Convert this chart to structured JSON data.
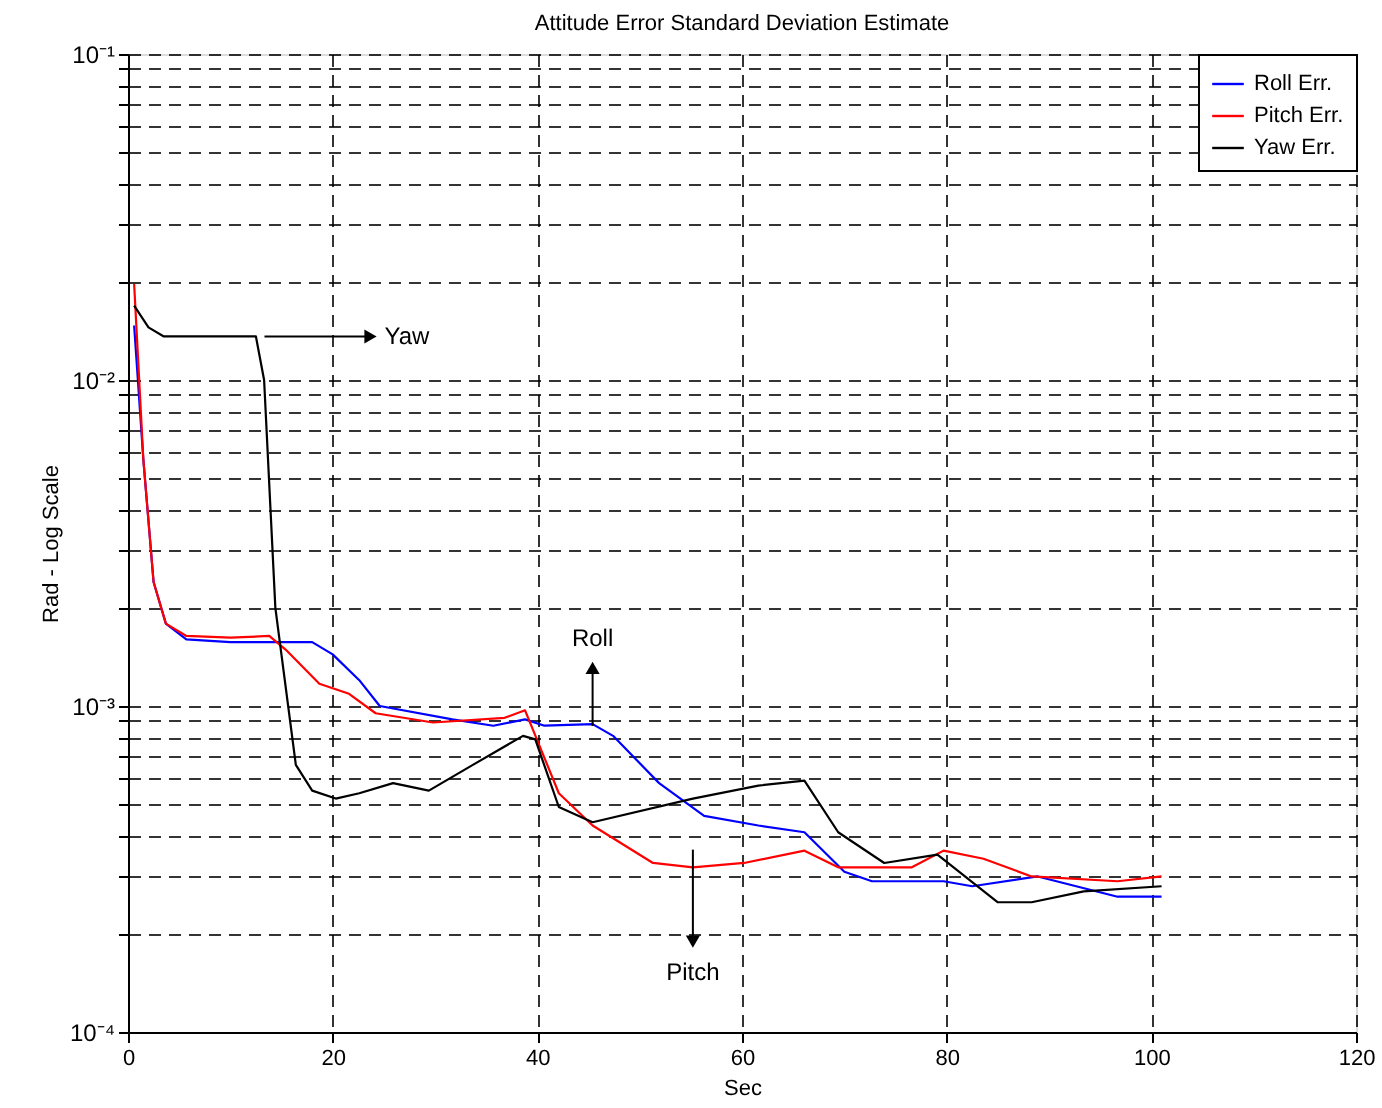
{
  "chart_data": {
    "type": "line",
    "title": "Attitude Error Standard Deviation Estimate",
    "xlabel": "Sec",
    "ylabel": "Rad - Log Scale",
    "log": "y",
    "grid": true,
    "legend": "top right",
    "line_style": "solid",
    "marker": "none",
    "xlim": [
      0,
      120
    ],
    "xticks": [
      0,
      20,
      40,
      60,
      80,
      100,
      120
    ],
    "ylim": [
      0.0001,
      0.1
    ],
    "yticks": [
      {
        "value": 0.0001,
        "label": "10⁻⁴"
      },
      {
        "value": 0.0002,
        "label": null
      },
      {
        "value": 0.0003,
        "label": null
      },
      {
        "value": 0.0004,
        "label": null
      },
      {
        "value": 0.0005,
        "label": null
      },
      {
        "value": 0.0006,
        "label": null
      },
      {
        "value": 0.0007,
        "label": null
      },
      {
        "value": 0.0008,
        "label": null
      },
      {
        "value": 0.0009,
        "label": null
      },
      {
        "value": 0.001,
        "label": "10⁻³"
      },
      {
        "value": 0.002,
        "label": null
      },
      {
        "value": 0.003,
        "label": null
      },
      {
        "value": 0.004,
        "label": null
      },
      {
        "value": 0.005,
        "label": null
      },
      {
        "value": 0.006,
        "label": null
      },
      {
        "value": 0.007,
        "label": null
      },
      {
        "value": 0.008,
        "label": null
      },
      {
        "value": 0.009,
        "label": null
      },
      {
        "value": 0.01,
        "label": "10⁻²"
      },
      {
        "value": 0.02,
        "label": null
      },
      {
        "value": 0.03,
        "label": null
      },
      {
        "value": 0.04,
        "label": null
      },
      {
        "value": 0.05,
        "label": null
      },
      {
        "value": 0.06,
        "label": null
      },
      {
        "value": 0.07,
        "label": null
      },
      {
        "value": 0.08,
        "label": null
      },
      {
        "value": 0.09,
        "label": null
      },
      {
        "value": 0.1,
        "label": "10⁻¹"
      }
    ],
    "series": [
      {
        "name": "Roll Err.",
        "color": "#0000ff",
        "x": [
          0.6,
          1.5,
          2.5,
          3.7,
          5.7,
          10,
          18,
          20,
          22.6,
          24.6,
          31.7,
          35.7,
          38.8,
          40.7,
          45.4,
          47.4,
          51.9,
          56.3,
          61.6,
          66.1,
          70,
          72.7,
          79.7,
          82.5,
          88.9,
          96.7,
          101
        ],
        "values": [
          0.0147,
          0.0057,
          0.0024,
          0.00179,
          0.0016,
          0.00157,
          0.00157,
          0.00144,
          0.0012,
          0.001,
          0.00091,
          0.00087,
          0.00091,
          0.00087,
          0.00088,
          0.00081,
          0.00058,
          0.00046,
          0.00043,
          0.00041,
          0.00031,
          0.00029,
          0.00029,
          0.00028,
          0.0003,
          0.00026,
          0.00026
        ]
      },
      {
        "name": "Pitch Err.",
        "color": "#ff0000",
        "x": [
          0.6,
          1.5,
          2.5,
          3.7,
          5.7,
          10,
          13.8,
          15.4,
          18.7,
          21.6,
          24.2,
          29.8,
          36.8,
          38.8,
          42.1,
          45.4,
          51.3,
          55.2,
          60.2,
          66.1,
          69.4,
          76.6,
          79.7,
          83.6,
          88.3,
          96.7,
          101
        ],
        "values": [
          0.0197,
          0.0057,
          0.0024,
          0.00179,
          0.00164,
          0.00162,
          0.00164,
          0.00149,
          0.00117,
          0.00109,
          0.00095,
          0.00089,
          0.00092,
          0.00097,
          0.00054,
          0.00043,
          0.00033,
          0.00032,
          0.00033,
          0.00036,
          0.00032,
          0.00032,
          0.00036,
          0.00034,
          0.0003,
          0.00029,
          0.0003
        ]
      },
      {
        "name": "Yaw Err.",
        "color": "#000000",
        "x": [
          0.6,
          2,
          3.5,
          8,
          12.5,
          13.3,
          14.4,
          16.4,
          18,
          20.3,
          22.6,
          25.9,
          29.4,
          33.7,
          38.6,
          39.8,
          42.1,
          45.4,
          55.2,
          61.6,
          66.1,
          69.4,
          73.9,
          79.1,
          85,
          88.3,
          93.4,
          101
        ],
        "values": [
          0.0169,
          0.0145,
          0.0136,
          0.0136,
          0.0136,
          0.01,
          0.002,
          0.00066,
          0.00055,
          0.00052,
          0.00054,
          0.00058,
          0.00055,
          0.00066,
          0.00081,
          0.00079,
          0.00049,
          0.00044,
          0.00052,
          0.00057,
          0.00059,
          0.00041,
          0.00033,
          0.00035,
          0.00025,
          0.00025,
          0.00027,
          0.00028
        ]
      }
    ],
    "annotations": [
      {
        "text": "Yaw",
        "x": 23.5,
        "y": 0.0136
      },
      {
        "text": "Roll",
        "x": 45.4,
        "y": 0.00129
      },
      {
        "text": "Pitch",
        "x": 55.2,
        "y": 0.000192
      }
    ]
  }
}
